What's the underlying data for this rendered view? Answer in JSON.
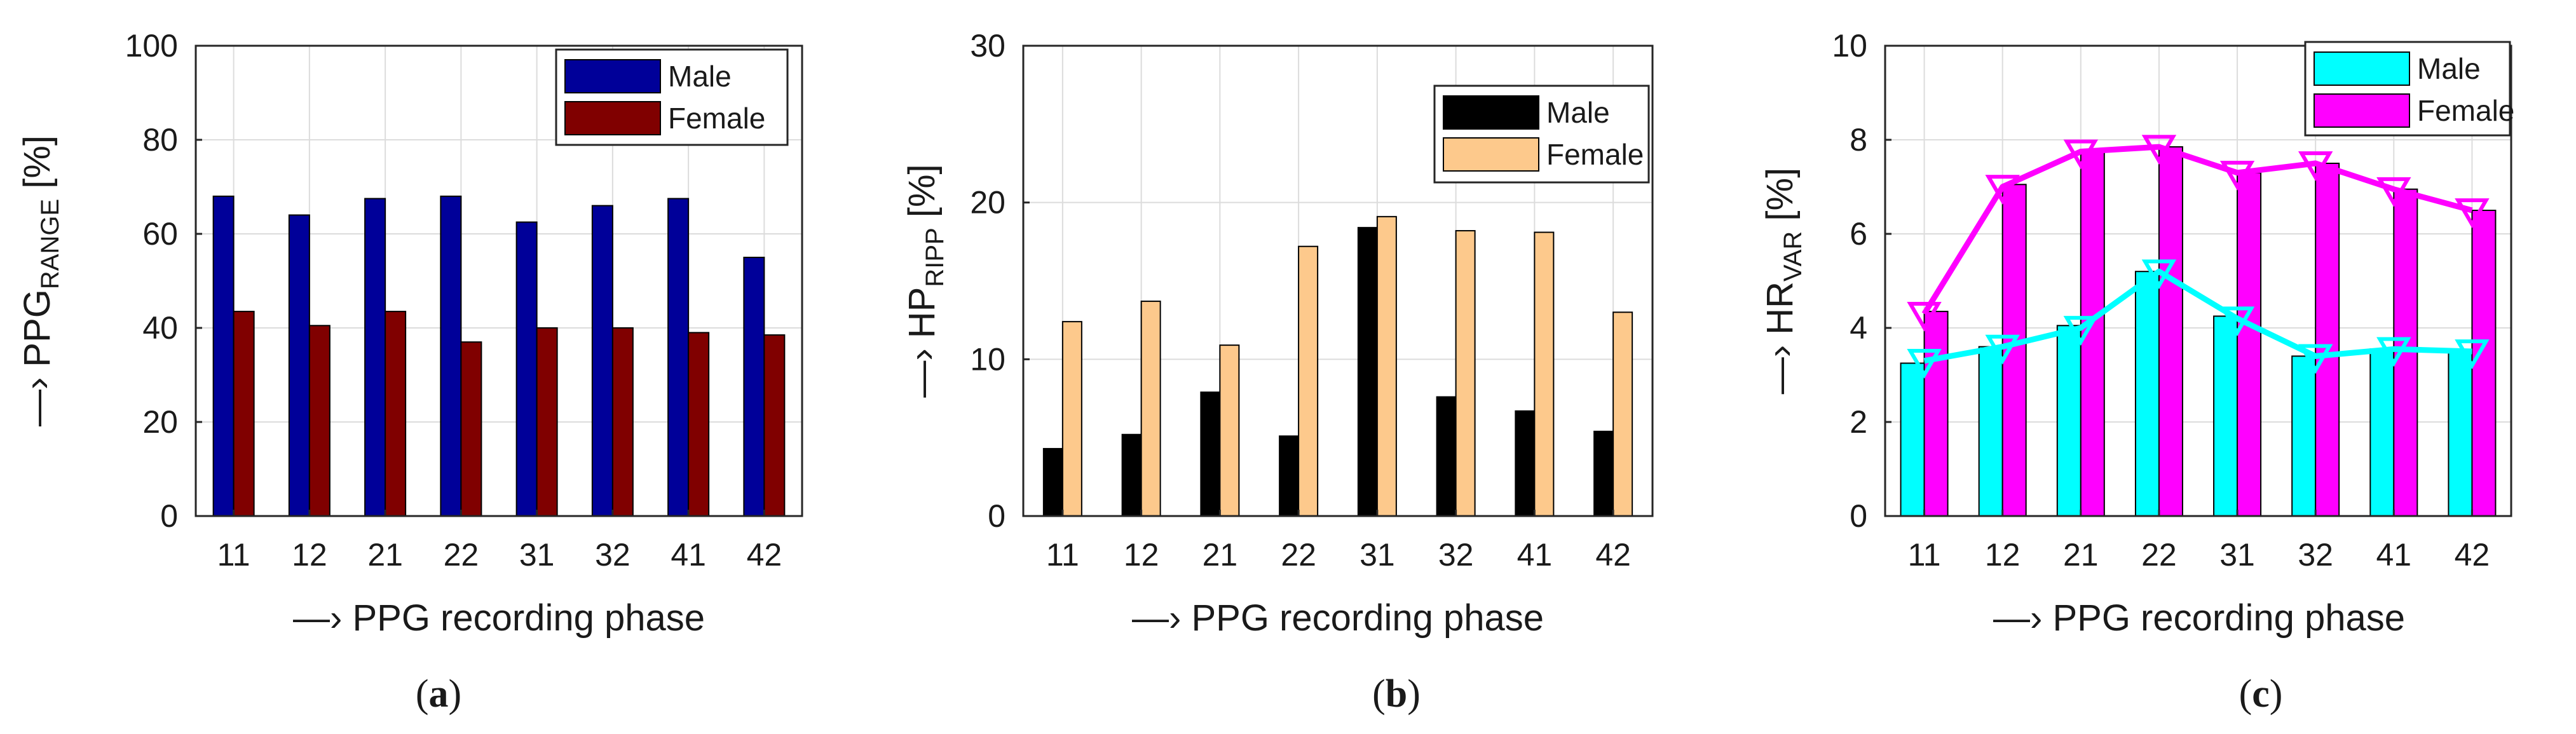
{
  "chart_data": [
    {
      "type": "bar",
      "panel_label": "(a)",
      "panel_letter": "a",
      "categories": [
        "11",
        "12",
        "21",
        "22",
        "31",
        "32",
        "41",
        "42"
      ],
      "series": [
        {
          "name": "Male",
          "color": "#000099",
          "values": [
            68,
            64,
            67.5,
            68,
            62.5,
            66,
            67.5,
            55
          ]
        },
        {
          "name": "Female",
          "color": "#800000",
          "values": [
            43.5,
            40.5,
            43.5,
            37,
            40,
            40,
            39,
            38.5
          ]
        }
      ],
      "ylim": [
        0,
        100
      ],
      "yticks": [
        "0",
        "20",
        "40",
        "60",
        "80",
        "100"
      ],
      "ylabel": {
        "prefix": "—› PPG",
        "sub": "RANGE",
        "suffix": " [%]"
      },
      "xlabel": "—› PPG recording phase",
      "grid": true,
      "legend": "top-right"
    },
    {
      "type": "bar",
      "panel_label": "(b)",
      "panel_letter": "b",
      "categories": [
        "11",
        "12",
        "21",
        "22",
        "31",
        "32",
        "41",
        "42"
      ],
      "series": [
        {
          "name": "Male",
          "color": "#000000",
          "values": [
            4.3,
            5.2,
            7.9,
            5.1,
            18.4,
            7.6,
            6.7,
            5.4
          ]
        },
        {
          "name": "Female",
          "color": "#fdc98c",
          "values": [
            12.4,
            13.7,
            10.9,
            17.2,
            19.1,
            18.2,
            18.1,
            13
          ]
        }
      ],
      "ylim": [
        0,
        30
      ],
      "yticks": [
        "0",
        "10",
        "20",
        "30"
      ],
      "ylabel": {
        "prefix": "—› HP",
        "sub": "RIPP",
        "suffix": " [%]"
      },
      "xlabel": "—› PPG recording phase",
      "grid": true,
      "legend": "top-right"
    },
    {
      "type": "bar+line",
      "panel_label": "(c)",
      "panel_letter": "c",
      "categories": [
        "11",
        "12",
        "21",
        "22",
        "31",
        "32",
        "41",
        "42"
      ],
      "series": [
        {
          "name": "Male",
          "color": "#00ffff",
          "values": [
            3.25,
            3.6,
            4.05,
            5.2,
            4.25,
            3.4,
            3.55,
            3.5
          ]
        },
        {
          "name": "Female",
          "color": "#ff00ff",
          "values": [
            4.35,
            7.05,
            7.75,
            7.85,
            7.3,
            7.5,
            6.95,
            6.5
          ]
        }
      ],
      "lines": [
        {
          "name": "Male",
          "color": "#00ffff",
          "marker": "triangle-down",
          "values": [
            3.3,
            3.6,
            4.0,
            5.2,
            4.2,
            3.4,
            3.55,
            3.5
          ]
        },
        {
          "name": "Female",
          "color": "#ff00ff",
          "marker": "triangle-down",
          "values": [
            4.3,
            7.0,
            7.75,
            7.85,
            7.3,
            7.5,
            6.95,
            6.5
          ]
        }
      ],
      "ylim": [
        0,
        10
      ],
      "yticks": [
        "0",
        "2",
        "4",
        "6",
        "8",
        "10"
      ],
      "ylabel": {
        "prefix": "—› HR",
        "sub": "VAR",
        "suffix": " [%]"
      },
      "xlabel": "—› PPG recording phase",
      "grid": true,
      "legend": "top-right"
    }
  ]
}
